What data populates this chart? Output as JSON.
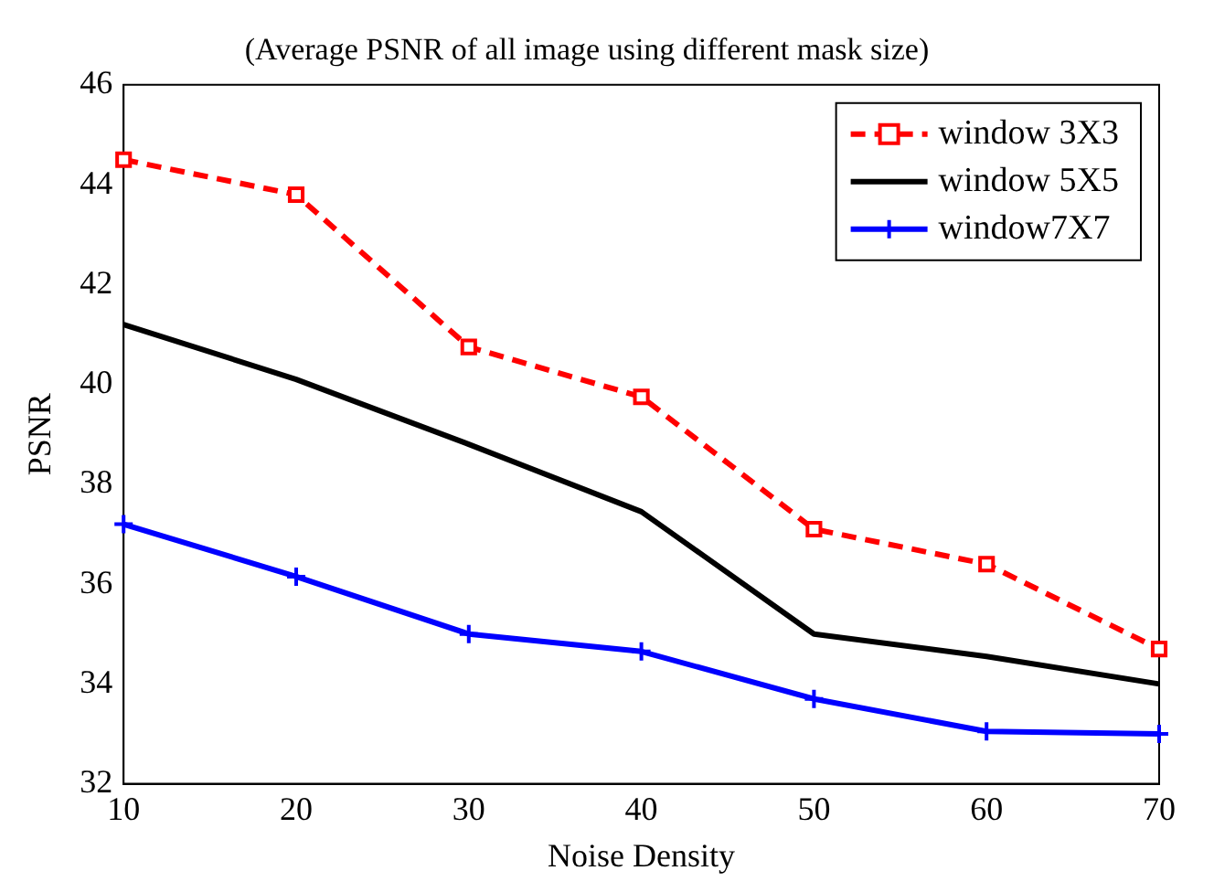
{
  "chart_data": {
    "type": "line",
    "title": "(Average PSNR of all image using different mask size)",
    "xlabel": "Noise Density",
    "ylabel": "PSNR",
    "x": [
      10,
      20,
      30,
      40,
      50,
      60,
      70
    ],
    "series": [
      {
        "name": "window 3X3",
        "color": "#ff0000",
        "values": [
          44.5,
          43.8,
          40.75,
          39.75,
          37.1,
          36.4,
          34.7
        ],
        "marker": "square",
        "line_style": "dashed"
      },
      {
        "name": "window 5X5",
        "color": "#000000",
        "values": [
          41.2,
          40.1,
          38.8,
          37.45,
          35.0,
          34.55,
          34.0
        ],
        "marker": "none",
        "line_style": "solid"
      },
      {
        "name": "window7X7",
        "color": "#0000ff",
        "values": [
          37.2,
          36.15,
          35.0,
          34.65,
          33.7,
          33.05,
          33.0
        ],
        "marker": "cross",
        "line_style": "solid"
      }
    ],
    "xlim": [
      10,
      70
    ],
    "xticks": [
      10,
      20,
      30,
      40,
      50,
      60,
      70
    ],
    "ylim": [
      32,
      46
    ],
    "yticks": [
      32,
      34,
      36,
      38,
      40,
      42,
      44,
      46
    ],
    "grid": false,
    "legend": "top right"
  }
}
